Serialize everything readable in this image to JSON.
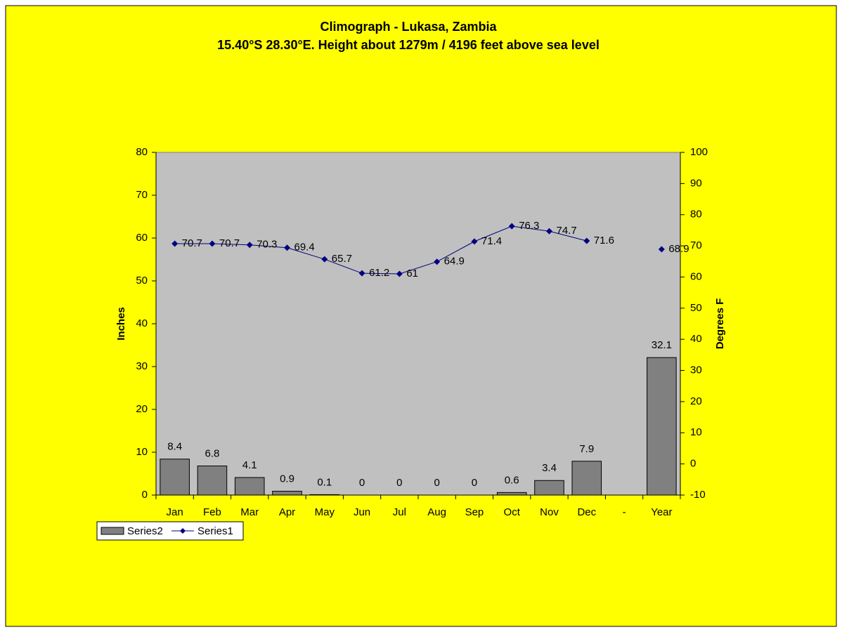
{
  "chart_data": {
    "type": "combo",
    "title": "Climograph - Lukasa, Zambia",
    "subtitle": "15.40°S 28.30°E. Height about 1279m / 4196 feet above sea level",
    "y_label": "Inches",
    "y2_label": "Degrees F",
    "categories": [
      "Jan",
      "Feb",
      "Mar",
      "Apr",
      "May",
      "Jun",
      "Jul",
      "Aug",
      "Sep",
      "Oct",
      "Nov",
      "Dec",
      "-",
      "Year"
    ],
    "series": [
      {
        "name": "Series2",
        "type": "bar",
        "color": "#808080",
        "values": [
          8.4,
          6.8,
          4.1,
          0.9,
          0.1,
          0,
          0,
          0,
          0,
          0.6,
          3.4,
          7.9,
          null,
          32.1
        ]
      },
      {
        "name": "Series1",
        "type": "line",
        "axis": "y2",
        "color": "#000080",
        "values": [
          70.7,
          70.7,
          70.3,
          69.4,
          65.7,
          61.2,
          61,
          64.9,
          71.4,
          76.3,
          74.7,
          71.6,
          null,
          68.9
        ]
      }
    ],
    "ylim": [
      0,
      80
    ],
    "yticks": [
      0,
      10,
      20,
      30,
      40,
      50,
      60,
      70,
      80
    ],
    "y2lim": [
      -10,
      100
    ],
    "y2ticks": [
      -10,
      0,
      10,
      20,
      30,
      40,
      50,
      60,
      70,
      80,
      90,
      100
    ],
    "grid": false,
    "legend": "bottom-left",
    "background": "#ffff00",
    "plot_background": "#c0c0c0"
  }
}
